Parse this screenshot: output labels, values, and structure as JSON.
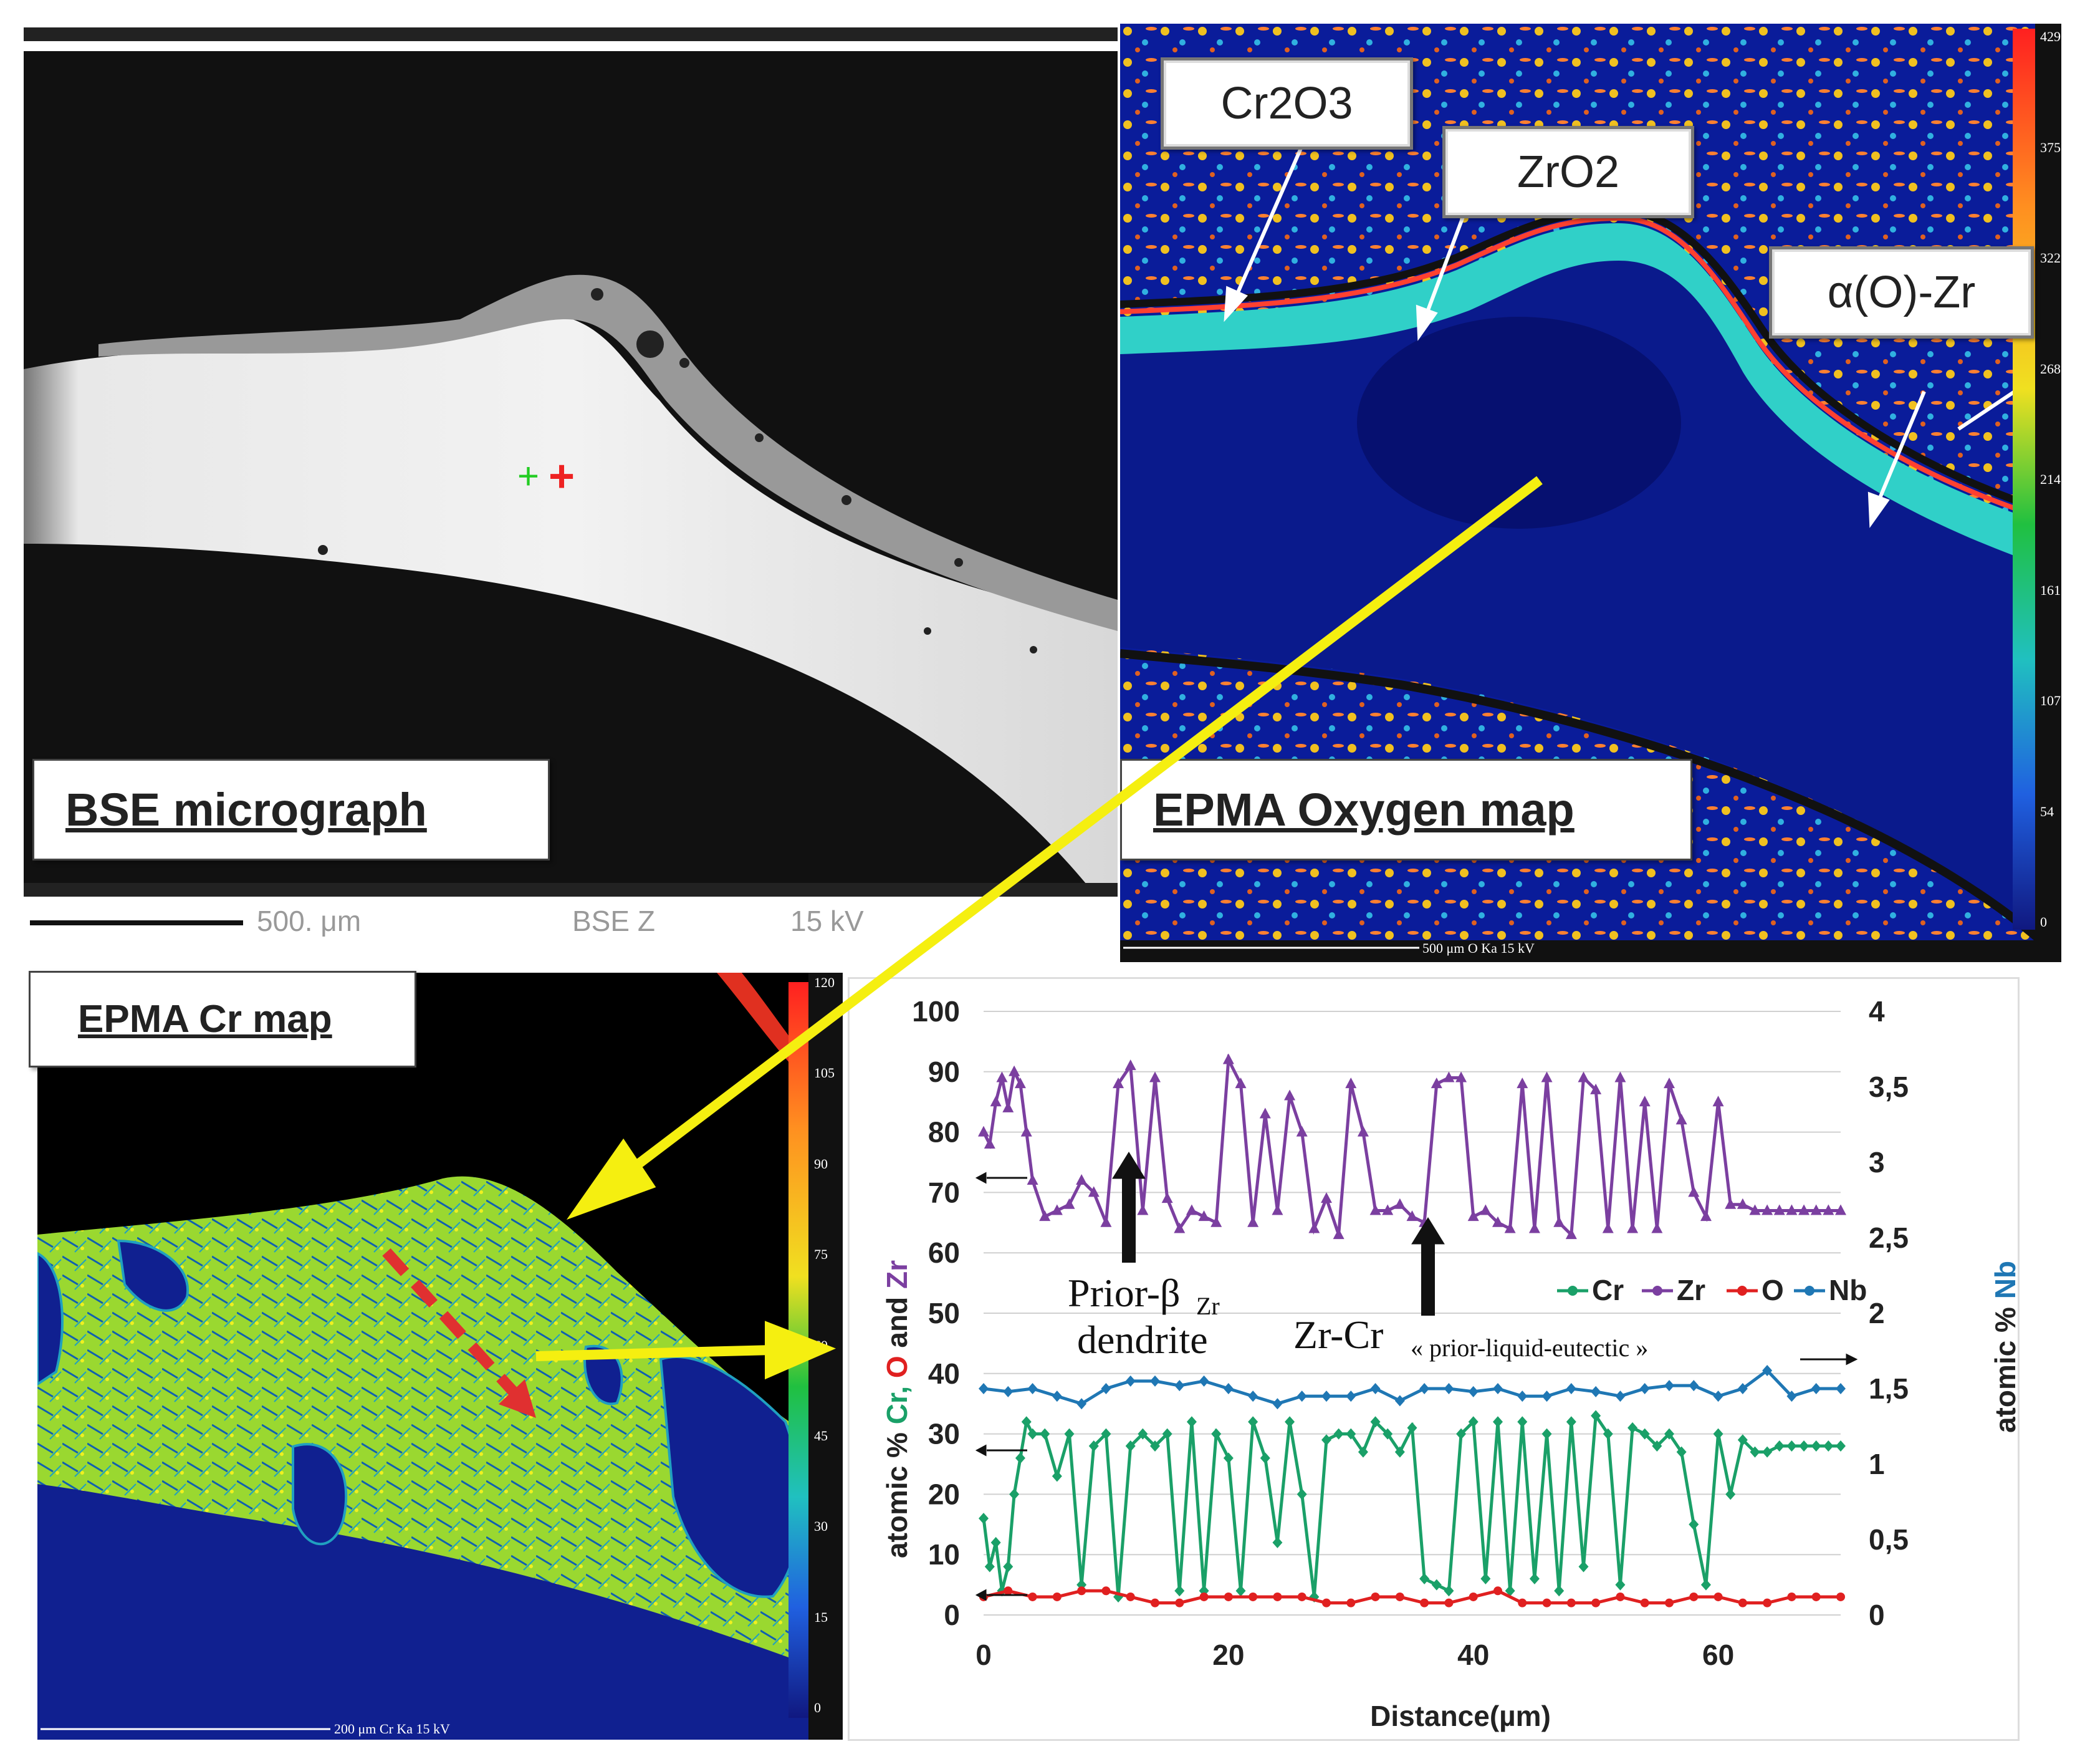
{
  "panels": {
    "bse": {
      "label": "BSE micrograph",
      "scale_value": "500. μm",
      "mode": "BSE Z",
      "voltage": "15 kV"
    },
    "oxygen": {
      "label": "EPMA Oxygen map",
      "footer": "500 μm  O Ka  15 kV",
      "colorbar": [
        "429",
        "375",
        "322",
        "268",
        "214",
        "161",
        "107",
        "54",
        "0"
      ],
      "callouts": {
        "cr2o3": "Cr2O3",
        "zro2": "ZrO2",
        "alpha": "α(O)-Zr"
      }
    },
    "cr": {
      "label": "EPMA Cr map",
      "footer": "200 μm  Cr Ka  15 kV",
      "colorbar": [
        "120",
        "105",
        "90",
        "75",
        "60",
        "45",
        "30",
        "15",
        "0"
      ]
    }
  },
  "chart_data": {
    "type": "line",
    "xlabel": "Distance(µm)",
    "ylabel_left": "atomic % Cr, O and Zr",
    "ylabel_right": "atomic % Nb",
    "xlim": [
      0,
      70
    ],
    "xticks": [
      "0",
      "20",
      "40",
      "60"
    ],
    "ylim_left": [
      0,
      100
    ],
    "yticks_left": [
      "0",
      "10",
      "20",
      "30",
      "40",
      "50",
      "60",
      "70",
      "80",
      "90",
      "100"
    ],
    "ylim_right": [
      0,
      4
    ],
    "yticks_right": [
      "0",
      "0,5",
      "1",
      "1,5",
      "2",
      "2,5",
      "3",
      "3,5",
      "4"
    ],
    "legend": [
      "Cr",
      "Zr",
      "O",
      "Nb"
    ],
    "legend_position": "right, mid",
    "colors": {
      "Cr": "#1aa068",
      "Zr": "#7b3fa0",
      "O": "#e02020",
      "Nb": "#1f77b4"
    },
    "annotations": {
      "dendrite_line1": "Prior-β",
      "dendrite_sub": "Zr",
      "dendrite_line2": "dendrite",
      "eutectic_main": "Zr-Cr",
      "eutectic_q": "« prior-liquid-eutectic  »"
    },
    "series": [
      {
        "name": "Zr",
        "axis": "left",
        "x": [
          0,
          0.5,
          1,
          1.5,
          2,
          2.5,
          3,
          3.5,
          4,
          5,
          6,
          7,
          8,
          9,
          10,
          11,
          12,
          13,
          14,
          15,
          16,
          17,
          18,
          19,
          20,
          21,
          22,
          23,
          24,
          25,
          26,
          27,
          28,
          29,
          30,
          31,
          32,
          33,
          34,
          35,
          36,
          37,
          38,
          39,
          40,
          41,
          42,
          43,
          44,
          45,
          46,
          47,
          48,
          49,
          50,
          51,
          52,
          53,
          54,
          55,
          56,
          57,
          58,
          59,
          60,
          61,
          62,
          63,
          64,
          65,
          66,
          67,
          68,
          69,
          70
        ],
        "values": [
          80,
          78,
          85,
          89,
          84,
          90,
          88,
          80,
          72,
          66,
          67,
          68,
          72,
          70,
          65,
          88,
          91,
          67,
          89,
          69,
          64,
          67,
          66,
          65,
          92,
          88,
          65,
          83,
          67,
          86,
          80,
          64,
          69,
          63,
          88,
          80,
          67,
          67,
          68,
          66,
          65,
          88,
          89,
          89,
          66,
          67,
          65,
          64,
          88,
          64,
          89,
          65,
          63,
          89,
          87,
          64,
          89,
          64,
          85,
          64,
          88,
          82,
          70,
          66,
          85,
          68,
          68,
          67,
          67,
          67,
          67,
          67,
          67,
          67,
          67
        ]
      },
      {
        "name": "Cr",
        "axis": "left",
        "x": [
          0,
          0.5,
          1,
          1.5,
          2,
          2.5,
          3,
          3.5,
          4,
          5,
          6,
          7,
          8,
          9,
          10,
          11,
          12,
          13,
          14,
          15,
          16,
          17,
          18,
          19,
          20,
          21,
          22,
          23,
          24,
          25,
          26,
          27,
          28,
          29,
          30,
          31,
          32,
          33,
          34,
          35,
          36,
          37,
          38,
          39,
          40,
          41,
          42,
          43,
          44,
          45,
          46,
          47,
          48,
          49,
          50,
          51,
          52,
          53,
          54,
          55,
          56,
          57,
          58,
          59,
          60,
          61,
          62,
          63,
          64,
          65,
          66,
          67,
          68,
          69,
          70
        ],
        "values": [
          16,
          8,
          12,
          4,
          8,
          20,
          26,
          32,
          30,
          30,
          23,
          30,
          5,
          28,
          30,
          3,
          28,
          30,
          28,
          30,
          4,
          32,
          4,
          30,
          26,
          4,
          32,
          26,
          12,
          32,
          20,
          3,
          29,
          30,
          30,
          27,
          32,
          30,
          27,
          31,
          6,
          5,
          4,
          30,
          32,
          6,
          32,
          4,
          32,
          6,
          30,
          4,
          32,
          8,
          33,
          30,
          5,
          31,
          30,
          28,
          30,
          27,
          15,
          5,
          30,
          20,
          29,
          27,
          27,
          28,
          28,
          28,
          28,
          28,
          28
        ]
      },
      {
        "name": "O",
        "axis": "left",
        "x": [
          0,
          2,
          4,
          6,
          8,
          10,
          12,
          14,
          16,
          18,
          20,
          22,
          24,
          26,
          28,
          30,
          32,
          34,
          36,
          38,
          40,
          42,
          44,
          46,
          48,
          50,
          52,
          54,
          56,
          58,
          60,
          62,
          64,
          66,
          68,
          70
        ],
        "values": [
          3,
          4,
          3,
          3,
          4,
          4,
          3,
          2,
          2,
          3,
          3,
          3,
          3,
          3,
          2,
          2,
          3,
          3,
          2,
          2,
          3,
          4,
          2,
          2,
          2,
          2,
          3,
          2,
          2,
          3,
          3,
          2,
          2,
          3,
          3,
          3
        ]
      },
      {
        "name": "Nb",
        "axis": "right",
        "x": [
          0,
          2,
          4,
          6,
          8,
          10,
          12,
          14,
          16,
          18,
          20,
          22,
          24,
          26,
          28,
          30,
          32,
          34,
          36,
          38,
          40,
          42,
          44,
          46,
          48,
          50,
          52,
          54,
          56,
          58,
          60,
          62,
          64,
          66,
          68,
          70
        ],
        "values": [
          1.5,
          1.48,
          1.5,
          1.45,
          1.4,
          1.5,
          1.55,
          1.55,
          1.52,
          1.55,
          1.5,
          1.45,
          1.4,
          1.45,
          1.45,
          1.45,
          1.5,
          1.42,
          1.5,
          1.5,
          1.48,
          1.5,
          1.45,
          1.45,
          1.5,
          1.48,
          1.45,
          1.5,
          1.52,
          1.52,
          1.45,
          1.5,
          1.62,
          1.45,
          1.5,
          1.5
        ]
      }
    ]
  }
}
